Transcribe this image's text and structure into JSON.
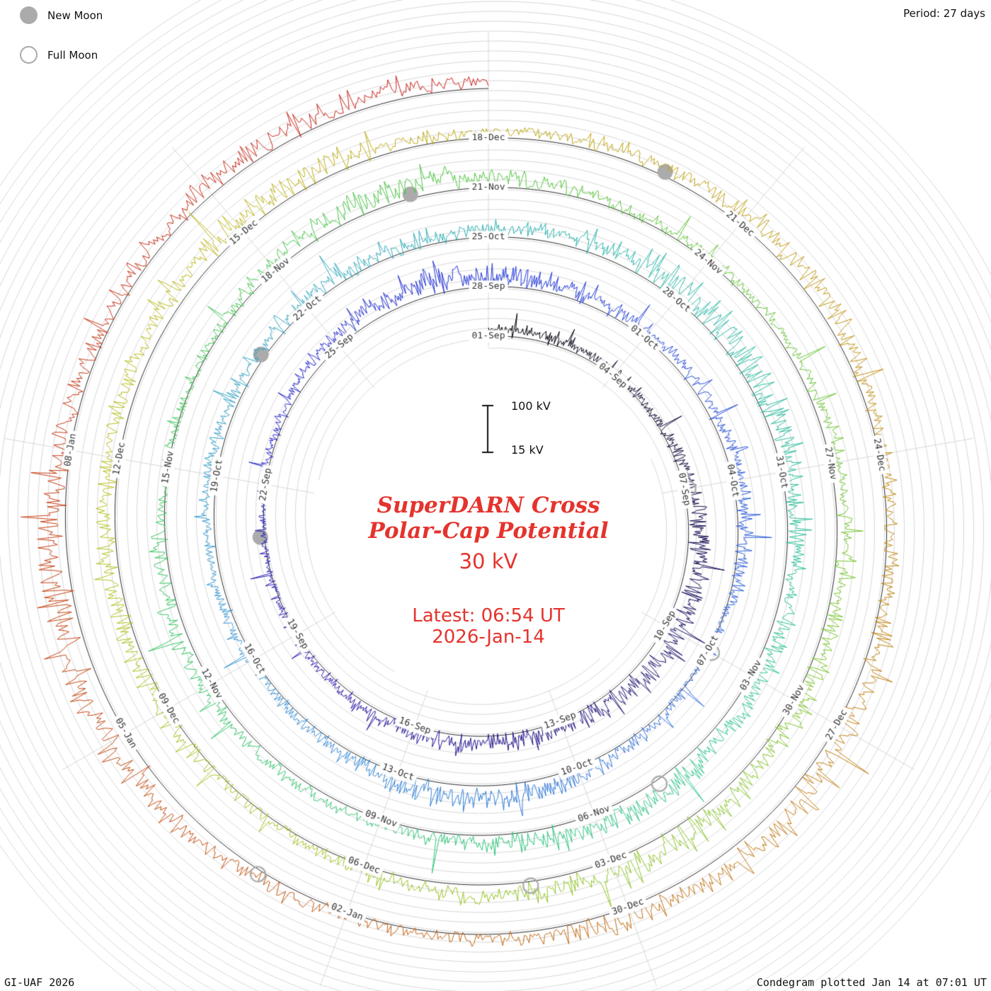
{
  "page": {
    "period_label": "Period: 27 days",
    "credit_left": "GI-UAF 2026",
    "credit_right": "Condegram plotted Jan 14 at 07:01 UT"
  },
  "legend": {
    "new_moon": "New Moon",
    "full_moon": "Full Moon"
  },
  "center": {
    "title_line1": "SuperDARN Cross",
    "title_line2": "Polar-Cap Potential",
    "latest_value": "30 kV",
    "latest_time": "Latest: 06:54 UT",
    "latest_date": "2026-Jan-14"
  },
  "scale_bar": {
    "top": "100 kV",
    "bottom": "15 kV"
  },
  "colors": {
    "accent_red": "#e5332d",
    "moon_gray": "#ababab",
    "grid_gray": "#d2d2d2",
    "tick_text": "#333333",
    "baseline_black": "#111111"
  },
  "chart_data": {
    "type": "spiral",
    "title": "SuperDARN Cross Polar-Cap Potential",
    "period_days": 27,
    "turns": 5,
    "start_tick": "01-Sep",
    "end_of_data": "2026-Jan-14",
    "latest_kv": 30,
    "kv_baseline": 15,
    "kv_reference": 100,
    "tick_step_days": 3,
    "date_ticks": [
      "01-Sep",
      "04-Sep",
      "07-Sep",
      "10-Sep",
      "13-Sep",
      "16-Sep",
      "19-Sep",
      "22-Sep",
      "25-Sep",
      "28-Sep",
      "01-Oct",
      "04-Oct",
      "07-Oct",
      "10-Oct",
      "13-Oct",
      "16-Oct",
      "19-Oct",
      "22-Oct",
      "25-Oct",
      "28-Oct",
      "31-Oct",
      "03-Nov",
      "06-Nov",
      "09-Nov",
      "12-Nov",
      "15-Nov",
      "18-Nov",
      "21-Nov",
      "24-Nov",
      "27-Nov",
      "30-Nov",
      "03-Dec",
      "06-Dec",
      "09-Dec",
      "12-Dec",
      "15-Dec",
      "18-Dec",
      "21-Dec",
      "24-Dec",
      "27-Dec",
      "30-Dec",
      "02-Jan",
      "05-Jan",
      "08-Jan"
    ],
    "moon_events": [
      {
        "date": "07-Sep",
        "day": 6,
        "phase": "full"
      },
      {
        "date": "21-Sep",
        "day": 20,
        "phase": "new"
      },
      {
        "date": "07-Oct",
        "day": 36,
        "phase": "full"
      },
      {
        "date": "21-Oct",
        "day": 50,
        "phase": "new"
      },
      {
        "date": "05-Nov",
        "day": 65,
        "phase": "full"
      },
      {
        "date": "20-Nov",
        "day": 80,
        "phase": "new"
      },
      {
        "date": "04-Dec",
        "day": 94,
        "phase": "full"
      },
      {
        "date": "20-Dec",
        "day": 110,
        "phase": "new"
      },
      {
        "date": "03-Jan",
        "day": 124,
        "phase": "full"
      }
    ],
    "color_stops": [
      {
        "at": 0.0,
        "color": "#000000"
      },
      {
        "at": 0.06,
        "color": "#16105e"
      },
      {
        "at": 0.13,
        "color": "#2a18b0"
      },
      {
        "at": 0.2,
        "color": "#2336d8"
      },
      {
        "at": 0.27,
        "color": "#2f6ad8"
      },
      {
        "at": 0.34,
        "color": "#3898d4"
      },
      {
        "at": 0.41,
        "color": "#2ab4ac"
      },
      {
        "at": 0.48,
        "color": "#2cc488"
      },
      {
        "at": 0.55,
        "color": "#36c45c"
      },
      {
        "at": 0.62,
        "color": "#5ec436"
      },
      {
        "at": 0.69,
        "color": "#90c428"
      },
      {
        "at": 0.75,
        "color": "#b6c01c"
      },
      {
        "at": 0.81,
        "color": "#c0a414"
      },
      {
        "at": 0.87,
        "color": "#c07c14"
      },
      {
        "at": 0.93,
        "color": "#c24c12"
      },
      {
        "at": 1.0,
        "color": "#c81e1e"
      }
    ],
    "series_stats": {
      "typical_kv": 30,
      "min_kv": 12,
      "max_kv": 140,
      "samples_per_day": 48,
      "note": "high-cadence noisy potential series; one spiral turn = 27 days, Sep 1 through Jan 14"
    }
  }
}
